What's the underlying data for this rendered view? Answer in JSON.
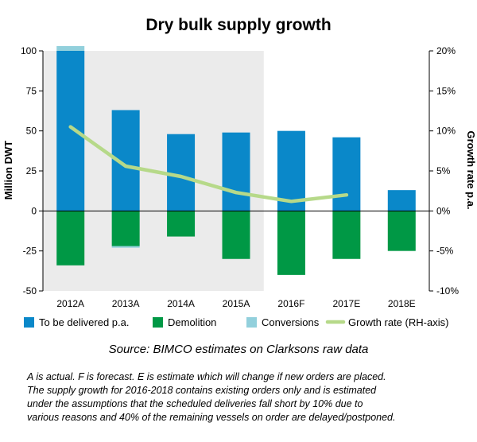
{
  "chart_data": {
    "type": "bar",
    "title": "Dry bulk supply growth",
    "ylabel": "Million DWT",
    "y2label": "Growth rate p.a.",
    "ylim": [
      -50,
      100
    ],
    "y2lim": [
      -10,
      20
    ],
    "yticks": [
      "100",
      "75",
      "50",
      "25",
      "0",
      "-25",
      "-50"
    ],
    "y2ticks": [
      "20%",
      "15%",
      "10%",
      "5%",
      "0%",
      "-5%",
      "-10%"
    ],
    "categories": [
      "2012A",
      "2013A",
      "2014A",
      "2015A",
      "2016F",
      "2017E",
      "2018E"
    ],
    "shaded_categories": [
      "2012A",
      "2013A",
      "2014A",
      "2015A"
    ],
    "series": [
      {
        "name": "To be delivered p.a.",
        "kind": "bar",
        "color": "#0a88c9",
        "values": [
          100,
          63,
          48,
          49,
          50,
          46,
          13
        ]
      },
      {
        "name": "Demolition",
        "kind": "bar",
        "color": "#009845",
        "values": [
          -34,
          -22,
          -16,
          -30,
          -40,
          -30,
          -25
        ]
      },
      {
        "name": "Conversions",
        "kind": "bar",
        "color": "#92d0dc",
        "values": [
          3,
          -1,
          0,
          0,
          0,
          0,
          0
        ]
      },
      {
        "name": "Growth rate (RH-axis)",
        "kind": "line",
        "axis": "right",
        "color": "#b6d989",
        "values": [
          10.5,
          5.6,
          4.3,
          2.3,
          1.2,
          2.0,
          null
        ]
      }
    ],
    "legend_position": "bottom",
    "grid": false,
    "source": "Source: BIMCO estimates on Clarksons raw data",
    "notes": [
      "A is actual. F is forecast. E is estimate which will change if new orders are placed.",
      "The supply growth for 2016-2018 contains existing orders only and is estimated",
      "under the assumptions that the scheduled deliveries fall short by 10% due to",
      "various reasons and 40% of the remaining vessels on order are delayed/postponed."
    ]
  },
  "colors": {
    "shade": "#ebebeb",
    "axis": "#000000"
  }
}
